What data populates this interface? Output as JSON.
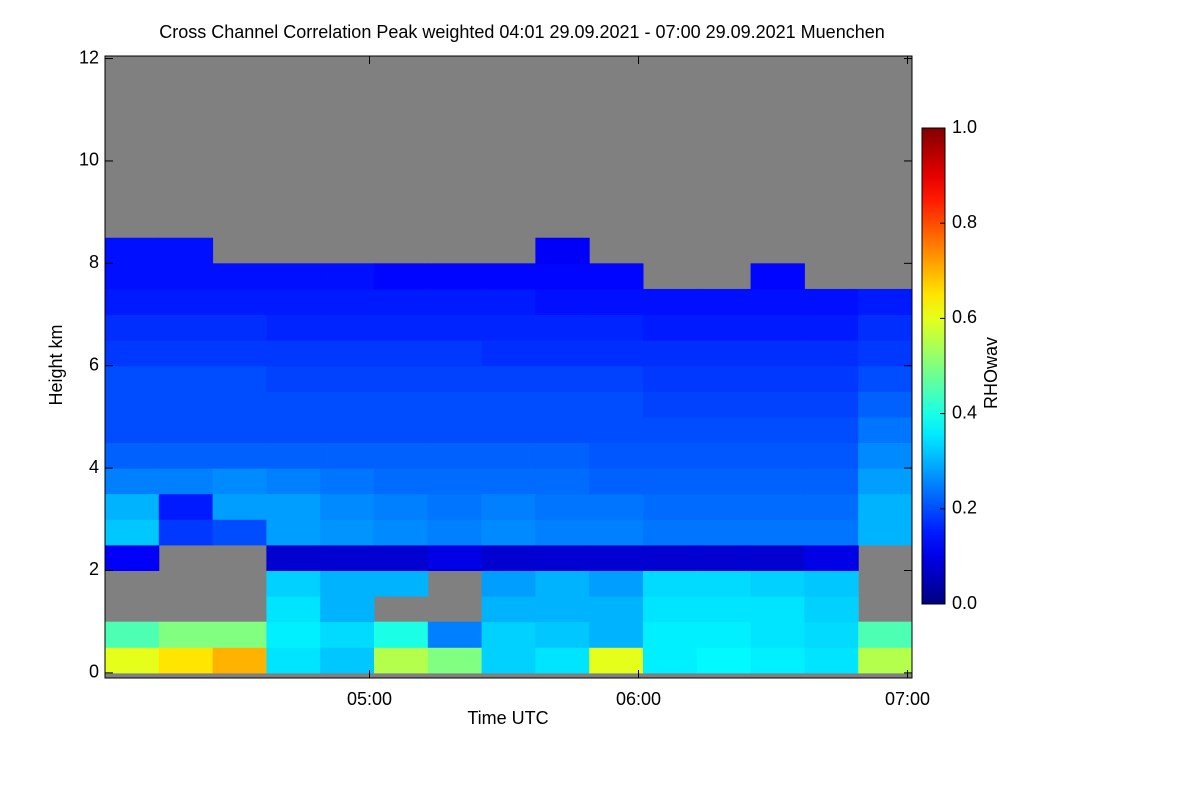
{
  "chart_data": {
    "type": "heatmap",
    "title": "Cross Channel Correlation Peak weighted   04:01 29.09.2021 - 07:00 29.09.2021 Muenchen",
    "x_label": "Time UTC",
    "y_label": "Height km",
    "colorbar_label": "RHOwav",
    "nodata_color": "#808080",
    "xlim": [
      241,
      421
    ],
    "xticks": [
      {
        "value": 300,
        "label": "05:00"
      },
      {
        "value": 360,
        "label": "06:00"
      },
      {
        "value": 420,
        "label": "07:00"
      }
    ],
    "ylim": [
      -0.1,
      12.05
    ],
    "yticks": [
      0,
      2,
      4,
      6,
      8,
      10,
      12
    ],
    "clim": [
      0,
      1
    ],
    "cticks": [
      {
        "value": 0,
        "label": "0.0"
      },
      {
        "value": 0.2,
        "label": "0.2"
      },
      {
        "value": 0.4,
        "label": "0.4"
      },
      {
        "value": 0.6,
        "label": "0.6"
      },
      {
        "value": 0.8,
        "label": "0.8"
      },
      {
        "value": 1,
        "label": "1.0"
      }
    ],
    "x_edges": [
      241,
      253,
      265,
      277,
      289,
      301,
      313,
      325,
      337,
      349,
      361,
      373,
      385,
      397,
      409,
      421
    ],
    "y_edges": [
      0,
      0.5,
      1,
      1.5,
      2,
      2.5,
      3,
      3.5,
      4,
      4.5,
      5,
      5.5,
      6,
      6.5,
      7,
      7.5,
      8,
      8.5,
      9,
      9.5,
      10,
      10.5,
      11,
      11.5,
      12
    ],
    "values": [
      [
        0.6,
        0.45,
        null,
        null,
        0.12,
        0.32,
        0.3,
        0.25,
        0.22,
        0.2,
        0.2,
        0.2,
        0.18,
        0.17,
        0.15,
        0.14,
        0.14,
        null,
        null,
        null,
        null,
        null,
        null,
        null
      ],
      [
        0.65,
        0.5,
        null,
        null,
        null,
        0.18,
        0.15,
        0.25,
        0.22,
        0.2,
        0.2,
        0.2,
        0.18,
        0.17,
        0.15,
        0.14,
        0.14,
        null,
        null,
        null,
        null,
        null,
        null,
        null
      ],
      [
        0.7,
        0.5,
        null,
        null,
        null,
        0.2,
        0.28,
        0.26,
        0.22,
        0.2,
        0.2,
        0.2,
        0.18,
        0.17,
        0.15,
        0.14,
        null,
        null,
        null,
        null,
        null,
        null,
        null,
        null
      ],
      [
        0.35,
        0.36,
        0.35,
        0.33,
        0.08,
        0.28,
        0.28,
        0.25,
        0.22,
        0.2,
        0.2,
        0.19,
        0.18,
        0.16,
        0.15,
        0.14,
        null,
        null,
        null,
        null,
        null,
        null,
        null,
        null
      ],
      [
        0.32,
        0.34,
        0.3,
        0.3,
        0.08,
        0.27,
        0.26,
        0.24,
        0.22,
        0.2,
        0.2,
        0.19,
        0.18,
        0.16,
        0.15,
        0.14,
        null,
        null,
        null,
        null,
        null,
        null,
        null,
        null
      ],
      [
        0.55,
        0.4,
        null,
        0.3,
        0.08,
        0.26,
        0.25,
        0.23,
        0.22,
        0.2,
        0.2,
        0.19,
        0.18,
        0.16,
        0.15,
        0.13,
        null,
        null,
        null,
        null,
        null,
        null,
        null,
        null
      ],
      [
        0.5,
        0.25,
        null,
        null,
        0.1,
        0.25,
        0.24,
        0.23,
        0.22,
        0.2,
        0.2,
        0.19,
        0.18,
        0.16,
        0.15,
        0.13,
        null,
        null,
        null,
        null,
        null,
        null,
        null,
        null
      ],
      [
        0.33,
        0.33,
        0.3,
        0.28,
        0.08,
        0.26,
        0.25,
        0.23,
        0.22,
        0.2,
        0.2,
        0.19,
        0.17,
        0.16,
        0.15,
        0.13,
        null,
        null,
        null,
        null,
        null,
        null,
        null,
        null
      ],
      [
        0.35,
        0.32,
        0.3,
        0.3,
        0.08,
        0.25,
        0.24,
        0.23,
        0.22,
        0.2,
        0.2,
        0.19,
        0.17,
        0.16,
        0.14,
        0.13,
        0.12,
        null,
        null,
        null,
        null,
        null,
        null,
        null
      ],
      [
        0.6,
        0.3,
        0.3,
        0.28,
        0.08,
        0.25,
        0.24,
        0.22,
        0.21,
        0.2,
        0.2,
        0.19,
        0.17,
        0.16,
        0.14,
        0.13,
        null,
        null,
        null,
        null,
        null,
        null,
        null,
        null
      ],
      [
        0.36,
        0.36,
        0.35,
        0.34,
        0.08,
        0.24,
        0.23,
        0.22,
        0.21,
        0.2,
        0.19,
        0.18,
        0.17,
        0.15,
        0.14,
        null,
        null,
        null,
        null,
        null,
        null,
        null,
        null,
        null
      ],
      [
        0.37,
        0.36,
        0.35,
        0.34,
        0.08,
        0.24,
        0.23,
        0.22,
        0.21,
        0.2,
        0.19,
        0.18,
        0.17,
        0.15,
        0.14,
        null,
        null,
        null,
        null,
        null,
        null,
        null,
        null,
        null
      ],
      [
        0.36,
        0.35,
        0.35,
        0.33,
        0.08,
        0.24,
        0.23,
        0.22,
        0.21,
        0.2,
        0.19,
        0.18,
        0.17,
        0.15,
        0.14,
        0.13,
        null,
        null,
        null,
        null,
        null,
        null,
        null,
        null
      ],
      [
        0.35,
        0.34,
        0.33,
        0.32,
        0.1,
        0.24,
        0.23,
        0.22,
        0.21,
        0.2,
        0.19,
        0.18,
        0.17,
        0.15,
        0.14,
        null,
        null,
        null,
        null,
        null,
        null,
        null,
        null,
        null
      ],
      [
        0.55,
        0.45,
        null,
        null,
        null,
        0.3,
        0.3,
        0.28,
        0.26,
        0.24,
        0.22,
        0.2,
        0.18,
        0.17,
        0.15,
        null,
        null,
        null,
        null,
        null,
        null,
        null,
        null,
        null
      ]
    ]
  }
}
